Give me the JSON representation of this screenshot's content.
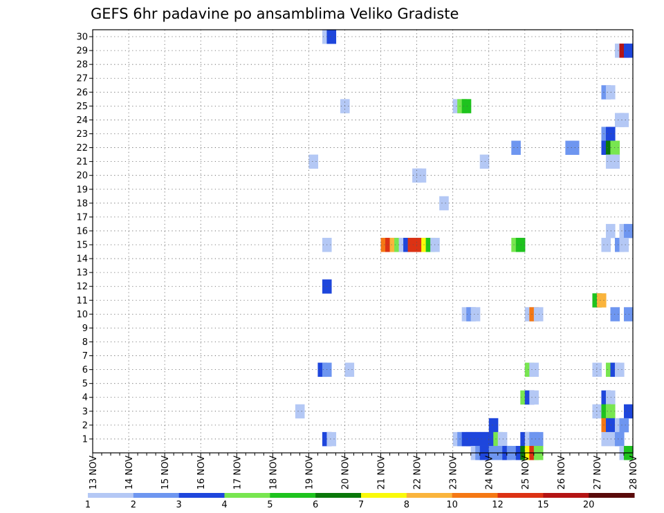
{
  "chart_data": {
    "type": "heatmap",
    "title": "GEFS 6hr padavine po ansamblima Veliko Gradiste",
    "x_labels": [
      "13 NOV",
      "14 NOV",
      "15 NOV",
      "16 NOV",
      "17 NOV",
      "18 NOV",
      "19 NOV",
      "20 NOV",
      "21 NOV",
      "22 NOV",
      "23 NOV",
      "24 NOV",
      "25 NOV",
      "26 NOV",
      "27 NOV",
      "28 NOV"
    ],
    "y_labels": [
      "1",
      "2",
      "3",
      "4",
      "5",
      "6",
      "7",
      "8",
      "9",
      "10",
      "11",
      "12",
      "13",
      "14",
      "15",
      "16",
      "17",
      "18",
      "19",
      "20",
      "21",
      "22",
      "23",
      "24",
      "25",
      "26",
      "27",
      "28",
      "29",
      "30"
    ],
    "ylim": [
      0,
      30
    ],
    "grid": true,
    "time_step_hours": 6,
    "legend": {
      "boundaries": [
        "1",
        "2",
        "3",
        "4",
        "5",
        "6",
        "7",
        "8",
        "10",
        "12",
        "15",
        "20"
      ],
      "colors": [
        "#b4c8f5",
        "#6e96f0",
        "#1e46dc",
        "#78e650",
        "#1ec31e",
        "#0a780a",
        "#fafa0a",
        "#fab43c",
        "#f57814",
        "#dc3214",
        "#b41414",
        "#5a0a0a"
      ]
    },
    "cells": [
      {
        "t": 25.5,
        "m": 30,
        "c": 1
      },
      {
        "t": 26.0,
        "m": 30,
        "c": 3
      },
      {
        "t": 58.0,
        "m": 29,
        "c": 1
      },
      {
        "t": 58.5,
        "m": 29,
        "c": 11
      },
      {
        "t": 59.0,
        "m": 29,
        "c": 3
      },
      {
        "t": 56.5,
        "m": 26,
        "c": 2
      },
      {
        "t": 57.0,
        "m": 26,
        "c": 1
      },
      {
        "t": 27.5,
        "m": 25,
        "c": 1
      },
      {
        "t": 40.0,
        "m": 25,
        "c": 1
      },
      {
        "t": 40.5,
        "m": 25,
        "c": 4
      },
      {
        "t": 41.0,
        "m": 25,
        "c": 5
      },
      {
        "t": 58.0,
        "m": 24,
        "c": 1
      },
      {
        "t": 58.5,
        "m": 24,
        "c": 1
      },
      {
        "t": 56.5,
        "m": 23,
        "c": 2
      },
      {
        "t": 57.0,
        "m": 23,
        "c": 3
      },
      {
        "t": 46.5,
        "m": 22,
        "c": 2
      },
      {
        "t": 52.5,
        "m": 22,
        "c": 2
      },
      {
        "t": 53.0,
        "m": 22,
        "c": 2
      },
      {
        "t": 56.5,
        "m": 22,
        "c": 3
      },
      {
        "t": 57.0,
        "m": 22,
        "c": 6
      },
      {
        "t": 57.5,
        "m": 22,
        "c": 4
      },
      {
        "t": 24.0,
        "m": 21,
        "c": 1
      },
      {
        "t": 43.0,
        "m": 21,
        "c": 1
      },
      {
        "t": 57.0,
        "m": 21,
        "c": 1
      },
      {
        "t": 57.5,
        "m": 21,
        "c": 1
      },
      {
        "t": 35.5,
        "m": 20,
        "c": 1
      },
      {
        "t": 36.0,
        "m": 20,
        "c": 1
      },
      {
        "t": 38.5,
        "m": 18,
        "c": 1
      },
      {
        "t": 57.0,
        "m": 16,
        "c": 1
      },
      {
        "t": 58.5,
        "m": 16,
        "c": 1
      },
      {
        "t": 59.0,
        "m": 16,
        "c": 2
      },
      {
        "t": 25.5,
        "m": 15,
        "c": 1
      },
      {
        "t": 32.0,
        "m": 15,
        "c": 9
      },
      {
        "t": 32.5,
        "m": 15,
        "c": 10
      },
      {
        "t": 33.0,
        "m": 15,
        "c": 8
      },
      {
        "t": 33.5,
        "m": 15,
        "c": 4
      },
      {
        "t": 34.0,
        "m": 15,
        "c": 1
      },
      {
        "t": 34.5,
        "m": 15,
        "c": 3
      },
      {
        "t": 35.0,
        "m": 15,
        "c": 10
      },
      {
        "t": 35.5,
        "m": 15,
        "c": 10
      },
      {
        "t": 36.0,
        "m": 15,
        "c": 10
      },
      {
        "t": 36.5,
        "m": 15,
        "c": 7
      },
      {
        "t": 37.0,
        "m": 15,
        "c": 5
      },
      {
        "t": 37.5,
        "m": 15,
        "c": 1
      },
      {
        "t": 46.5,
        "m": 15,
        "c": 4
      },
      {
        "t": 47.0,
        "m": 15,
        "c": 5
      },
      {
        "t": 56.5,
        "m": 15,
        "c": 1
      },
      {
        "t": 58.0,
        "m": 15,
        "c": 2
      },
      {
        "t": 58.5,
        "m": 15,
        "c": 1
      },
      {
        "t": 25.5,
        "m": 12,
        "c": 3
      },
      {
        "t": 55.5,
        "m": 11,
        "c": 5
      },
      {
        "t": 56.0,
        "m": 11,
        "c": 8
      },
      {
        "t": 41.0,
        "m": 10,
        "c": 1
      },
      {
        "t": 41.5,
        "m": 10,
        "c": 2
      },
      {
        "t": 42.0,
        "m": 10,
        "c": 1
      },
      {
        "t": 48.0,
        "m": 10,
        "c": 1
      },
      {
        "t": 48.5,
        "m": 10,
        "c": 9
      },
      {
        "t": 49.0,
        "m": 10,
        "c": 1
      },
      {
        "t": 57.5,
        "m": 10,
        "c": 2
      },
      {
        "t": 59.0,
        "m": 10,
        "c": 2
      },
      {
        "t": 25.0,
        "m": 6,
        "c": 3
      },
      {
        "t": 25.5,
        "m": 6,
        "c": 2
      },
      {
        "t": 28.0,
        "m": 6,
        "c": 1
      },
      {
        "t": 48.0,
        "m": 6,
        "c": 4
      },
      {
        "t": 48.5,
        "m": 6,
        "c": 1
      },
      {
        "t": 55.5,
        "m": 6,
        "c": 1
      },
      {
        "t": 57.0,
        "m": 6,
        "c": 4
      },
      {
        "t": 57.5,
        "m": 6,
        "c": 3
      },
      {
        "t": 58.0,
        "m": 6,
        "c": 1
      },
      {
        "t": 47.5,
        "m": 4,
        "c": 4
      },
      {
        "t": 48.0,
        "m": 4,
        "c": 3
      },
      {
        "t": 48.5,
        "m": 4,
        "c": 1
      },
      {
        "t": 56.5,
        "m": 4,
        "c": 3
      },
      {
        "t": 57.0,
        "m": 4,
        "c": 1
      },
      {
        "t": 22.5,
        "m": 3,
        "c": 1
      },
      {
        "t": 55.5,
        "m": 3,
        "c": 1
      },
      {
        "t": 56.5,
        "m": 3,
        "c": 5
      },
      {
        "t": 57.0,
        "m": 3,
        "c": 4
      },
      {
        "t": 59.0,
        "m": 3,
        "c": 3
      },
      {
        "t": 44.0,
        "m": 2,
        "c": 3
      },
      {
        "t": 56.5,
        "m": 2,
        "c": 9
      },
      {
        "t": 57.0,
        "m": 2,
        "c": 3
      },
      {
        "t": 58.0,
        "m": 2,
        "c": 1
      },
      {
        "t": 58.5,
        "m": 2,
        "c": 2
      },
      {
        "t": 25.5,
        "m": 1,
        "c": 3
      },
      {
        "t": 26.0,
        "m": 1,
        "c": 1
      },
      {
        "t": 40.0,
        "m": 1,
        "c": 1
      },
      {
        "t": 40.5,
        "m": 1,
        "c": 2
      },
      {
        "t": 41.0,
        "m": 1,
        "c": 3
      },
      {
        "t": 41.5,
        "m": 1,
        "c": 3
      },
      {
        "t": 42.0,
        "m": 1,
        "c": 3
      },
      {
        "t": 42.5,
        "m": 1,
        "c": 3
      },
      {
        "t": 43.0,
        "m": 1,
        "c": 3
      },
      {
        "t": 43.5,
        "m": 1,
        "c": 3
      },
      {
        "t": 44.0,
        "m": 1,
        "c": 3
      },
      {
        "t": 44.5,
        "m": 1,
        "c": 4
      },
      {
        "t": 45.0,
        "m": 1,
        "c": 1
      },
      {
        "t": 47.5,
        "m": 1,
        "c": 3
      },
      {
        "t": 48.0,
        "m": 1,
        "c": 1
      },
      {
        "t": 48.5,
        "m": 1,
        "c": 2
      },
      {
        "t": 49.0,
        "m": 1,
        "c": 2
      },
      {
        "t": 56.5,
        "m": 1,
        "c": 1
      },
      {
        "t": 57.5,
        "m": 1,
        "c": 1
      },
      {
        "t": 58.0,
        "m": 1,
        "c": 2
      },
      {
        "t": 42.0,
        "m": 0,
        "c": 1
      },
      {
        "t": 42.5,
        "m": 0,
        "c": 2
      },
      {
        "t": 43.0,
        "m": 0,
        "c": 3
      },
      {
        "t": 44.0,
        "m": 0,
        "c": 2
      },
      {
        "t": 45.0,
        "m": 0,
        "c": 2
      },
      {
        "t": 45.5,
        "m": 0,
        "c": 3
      },
      {
        "t": 46.0,
        "m": 0,
        "c": 2
      },
      {
        "t": 47.0,
        "m": 0,
        "c": 3
      },
      {
        "t": 47.5,
        "m": 0,
        "c": 6
      },
      {
        "t": 48.0,
        "m": 0,
        "c": 7
      },
      {
        "t": 48.5,
        "m": 0,
        "c": 10
      },
      {
        "t": 49.0,
        "m": 0,
        "c": 4
      },
      {
        "t": 58.5,
        "m": 0,
        "c": 1
      },
      {
        "t": 59.0,
        "m": 0,
        "c": 5
      }
    ]
  }
}
